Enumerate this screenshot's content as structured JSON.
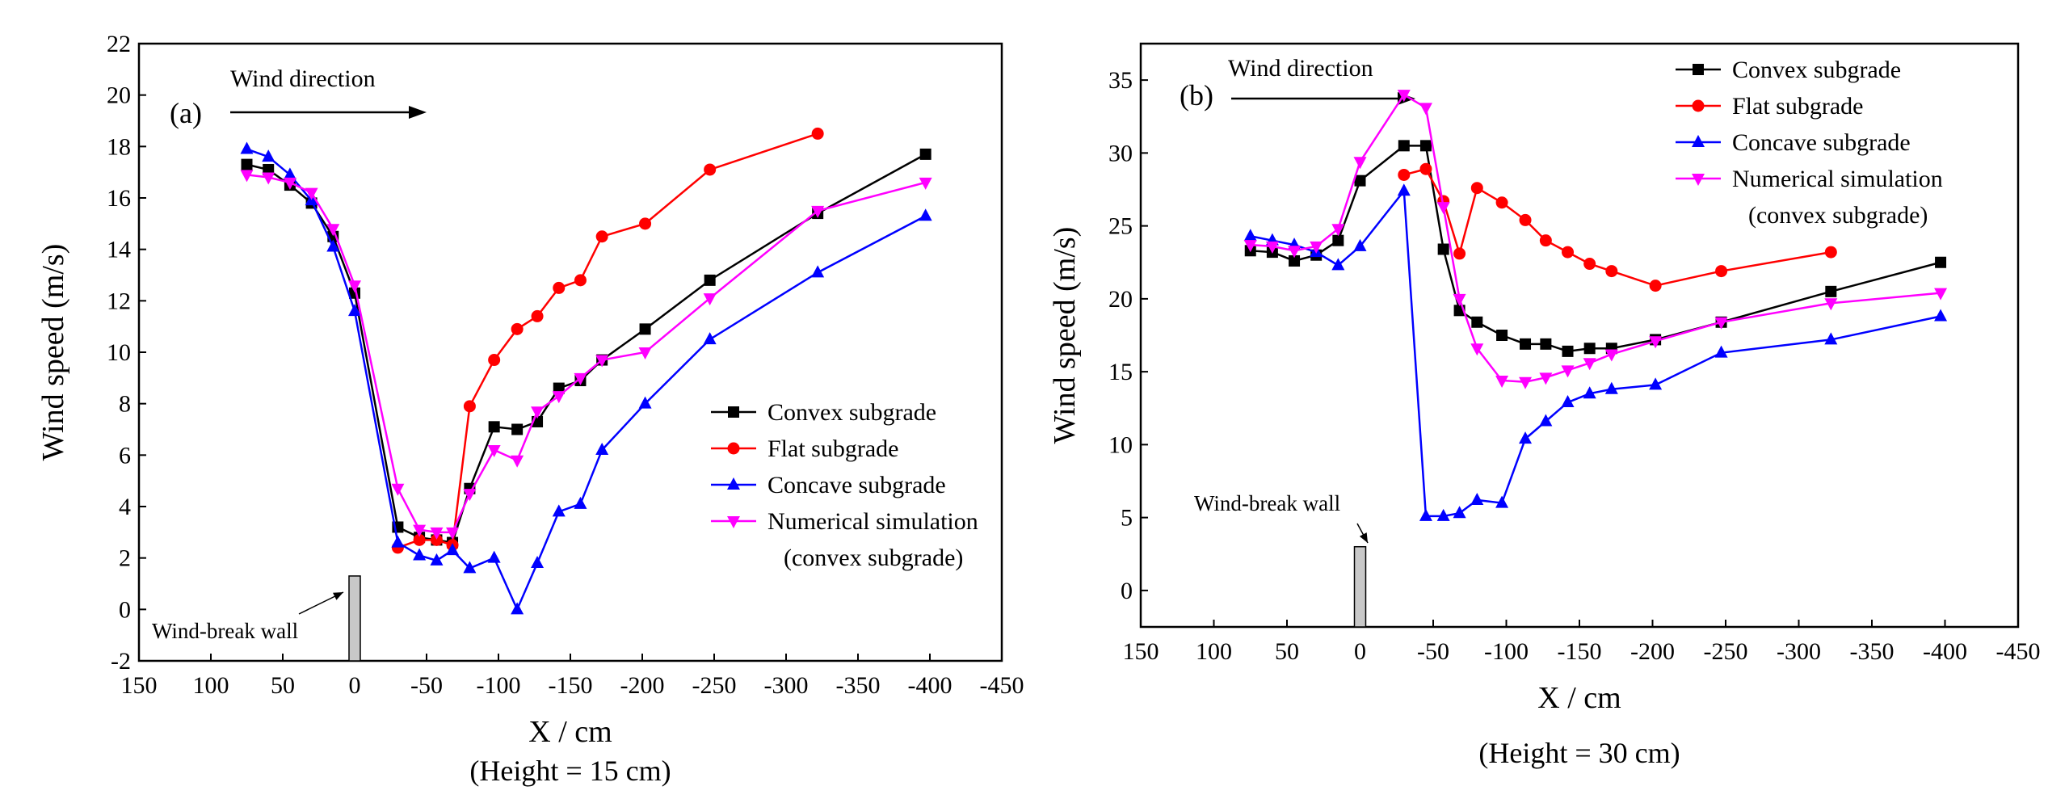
{
  "chart_data": [
    {
      "type": "line",
      "panel_label": "(a)",
      "xlabel": "X / cm",
      "ylabel": "Wind speed (m/s)",
      "caption": "(Height = 15 cm)",
      "xlim": [
        150,
        -450
      ],
      "ylim": [
        -2,
        22
      ],
      "x_ticks": [
        150,
        100,
        50,
        0,
        -50,
        -100,
        -150,
        -200,
        -250,
        -300,
        -350,
        -400,
        -450
      ],
      "y_ticks": [
        -2,
        0,
        2,
        4,
        6,
        8,
        10,
        12,
        14,
        16,
        18,
        20,
        22
      ],
      "wind_direction_label": "Wind direction",
      "wall_label": "Wind-break wall",
      "wall": {
        "x": 0,
        "y_bottom": -2,
        "y_top": 1.3
      },
      "legend": {
        "placement": "center-right"
      },
      "series": [
        {
          "name": "Convex subgrade",
          "color": "#000000",
          "marker": "square",
          "points": [
            [
              75,
              17.3
            ],
            [
              60,
              17.1
            ],
            [
              45,
              16.5
            ],
            [
              30,
              15.8
            ],
            [
              15,
              14.5
            ],
            [
              0,
              12.3
            ],
            [
              -30,
              3.2
            ],
            [
              -45,
              2.8
            ],
            [
              -57,
              2.7
            ],
            [
              -68,
              2.6
            ],
            [
              -80,
              4.7
            ],
            [
              -97,
              7.1
            ],
            [
              -113,
              7.0
            ],
            [
              -127,
              7.3
            ],
            [
              -142,
              8.6
            ],
            [
              -157,
              8.9
            ],
            [
              -172,
              9.7
            ],
            [
              -202,
              10.9
            ],
            [
              -247,
              12.8
            ],
            [
              -322,
              15.4
            ],
            [
              -397,
              17.7
            ]
          ]
        },
        {
          "name": "Flat subgrade",
          "color": "#ff0000",
          "marker": "circle",
          "points": [
            [
              -30,
              2.4
            ],
            [
              -45,
              2.7
            ],
            [
              -57,
              2.7
            ],
            [
              -68,
              2.5
            ],
            [
              -80,
              7.9
            ],
            [
              -97,
              9.7
            ],
            [
              -113,
              10.9
            ],
            [
              -127,
              11.4
            ],
            [
              -142,
              12.5
            ],
            [
              -157,
              12.8
            ],
            [
              -172,
              14.5
            ],
            [
              -202,
              15.0
            ],
            [
              -247,
              17.1
            ],
            [
              -322,
              18.5
            ]
          ]
        },
        {
          "name": "Concave subgrade",
          "color": "#0000ff",
          "marker": "triangle-up",
          "points": [
            [
              75,
              17.9
            ],
            [
              60,
              17.6
            ],
            [
              45,
              16.9
            ],
            [
              30,
              15.9
            ],
            [
              15,
              14.1
            ],
            [
              0,
              11.6
            ],
            [
              -30,
              2.6
            ],
            [
              -45,
              2.1
            ],
            [
              -57,
              1.9
            ],
            [
              -68,
              2.3
            ],
            [
              -80,
              1.6
            ],
            [
              -97,
              2.0
            ],
            [
              -113,
              0.0
            ],
            [
              -127,
              1.8
            ],
            [
              -142,
              3.8
            ],
            [
              -157,
              4.1
            ],
            [
              -172,
              6.2
            ],
            [
              -202,
              8.0
            ],
            [
              -247,
              10.5
            ],
            [
              -322,
              13.1
            ],
            [
              -397,
              15.3
            ]
          ]
        },
        {
          "name": "Numerical simulation",
          "name_line2": "(convex subgrade)",
          "color": "#ff00ff",
          "marker": "triangle-down",
          "points": [
            [
              75,
              16.9
            ],
            [
              60,
              16.8
            ],
            [
              45,
              16.6
            ],
            [
              30,
              16.2
            ],
            [
              15,
              14.8
            ],
            [
              0,
              12.6
            ],
            [
              -30,
              4.7
            ],
            [
              -45,
              3.1
            ],
            [
              -57,
              3.0
            ],
            [
              -68,
              3.0
            ],
            [
              -80,
              4.5
            ],
            [
              -97,
              6.2
            ],
            [
              -113,
              5.8
            ],
            [
              -127,
              7.7
            ],
            [
              -142,
              8.3
            ],
            [
              -157,
              9.0
            ],
            [
              -172,
              9.7
            ],
            [
              -202,
              10.0
            ],
            [
              -247,
              12.1
            ],
            [
              -322,
              15.5
            ],
            [
              -397,
              16.6
            ]
          ]
        }
      ]
    },
    {
      "type": "line",
      "panel_label": "(b)",
      "xlabel": "X / cm",
      "ylabel": "Wind speed (m/s)",
      "caption": "(Height = 30 cm)",
      "xlim": [
        150,
        -450
      ],
      "ylim": [
        -2.5,
        37.5
      ],
      "x_ticks": [
        150,
        100,
        50,
        0,
        -50,
        -100,
        -150,
        -200,
        -250,
        -300,
        -350,
        -400,
        -450
      ],
      "y_ticks": [
        0,
        5,
        10,
        15,
        20,
        25,
        30,
        35
      ],
      "wind_direction_label": "Wind direction",
      "wall_label": "Wind-break wall",
      "wall": {
        "x": 0,
        "y_bottom": -2.5,
        "y_top": 3.0
      },
      "legend": {
        "placement": "top-right"
      },
      "series": [
        {
          "name": "Convex subgrade",
          "color": "#000000",
          "marker": "square",
          "points": [
            [
              75,
              23.3
            ],
            [
              60,
              23.2
            ],
            [
              45,
              22.6
            ],
            [
              30,
              23.0
            ],
            [
              15,
              24.0
            ],
            [
              0,
              28.1
            ],
            [
              -30,
              30.5
            ],
            [
              -45,
              30.5
            ],
            [
              -57,
              23.4
            ],
            [
              -68,
              19.2
            ],
            [
              -80,
              18.4
            ],
            [
              -97,
              17.5
            ],
            [
              -113,
              16.9
            ],
            [
              -127,
              16.9
            ],
            [
              -142,
              16.4
            ],
            [
              -157,
              16.6
            ],
            [
              -172,
              16.6
            ],
            [
              -202,
              17.2
            ],
            [
              -247,
              18.4
            ],
            [
              -322,
              20.5
            ],
            [
              -397,
              22.5
            ]
          ]
        },
        {
          "name": "Flat subgrade",
          "color": "#ff0000",
          "marker": "circle",
          "points": [
            [
              -30,
              28.5
            ],
            [
              -45,
              28.9
            ],
            [
              -57,
              26.7
            ],
            [
              -68,
              23.1
            ],
            [
              -80,
              27.6
            ],
            [
              -97,
              26.6
            ],
            [
              -113,
              25.4
            ],
            [
              -127,
              24.0
            ],
            [
              -142,
              23.2
            ],
            [
              -157,
              22.4
            ],
            [
              -172,
              21.9
            ],
            [
              -202,
              20.9
            ],
            [
              -247,
              21.9
            ],
            [
              -322,
              23.2
            ]
          ]
        },
        {
          "name": "Concave subgrade",
          "color": "#0000ff",
          "marker": "triangle-up",
          "points": [
            [
              75,
              24.3
            ],
            [
              60,
              24.0
            ],
            [
              45,
              23.7
            ],
            [
              30,
              23.2
            ],
            [
              15,
              22.3
            ],
            [
              0,
              23.6
            ],
            [
              -30,
              27.4
            ],
            [
              -45,
              5.1
            ],
            [
              -57,
              5.1
            ],
            [
              -68,
              5.3
            ],
            [
              -80,
              6.2
            ],
            [
              -97,
              6.0
            ],
            [
              -113,
              10.4
            ],
            [
              -127,
              11.6
            ],
            [
              -142,
              12.9
            ],
            [
              -157,
              13.5
            ],
            [
              -172,
              13.8
            ],
            [
              -202,
              14.1
            ],
            [
              -247,
              16.3
            ],
            [
              -322,
              17.2
            ],
            [
              -397,
              18.8
            ]
          ]
        },
        {
          "name": "Numerical simulation",
          "name_line2": "(convex subgrade)",
          "color": "#ff00ff",
          "marker": "triangle-down",
          "points": [
            [
              75,
              23.7
            ],
            [
              60,
              23.6
            ],
            [
              45,
              23.3
            ],
            [
              30,
              23.6
            ],
            [
              15,
              24.8
            ],
            [
              0,
              29.4
            ],
            [
              -30,
              34.0
            ],
            [
              -45,
              33.1
            ],
            [
              -57,
              26.3
            ],
            [
              -68,
              20.0
            ],
            [
              -80,
              16.6
            ],
            [
              -97,
              14.4
            ],
            [
              -113,
              14.3
            ],
            [
              -127,
              14.6
            ],
            [
              -142,
              15.1
            ],
            [
              -157,
              15.6
            ],
            [
              -172,
              16.2
            ],
            [
              -202,
              17.1
            ],
            [
              -247,
              18.4
            ],
            [
              -322,
              19.7
            ],
            [
              -397,
              20.4
            ]
          ]
        }
      ]
    }
  ]
}
